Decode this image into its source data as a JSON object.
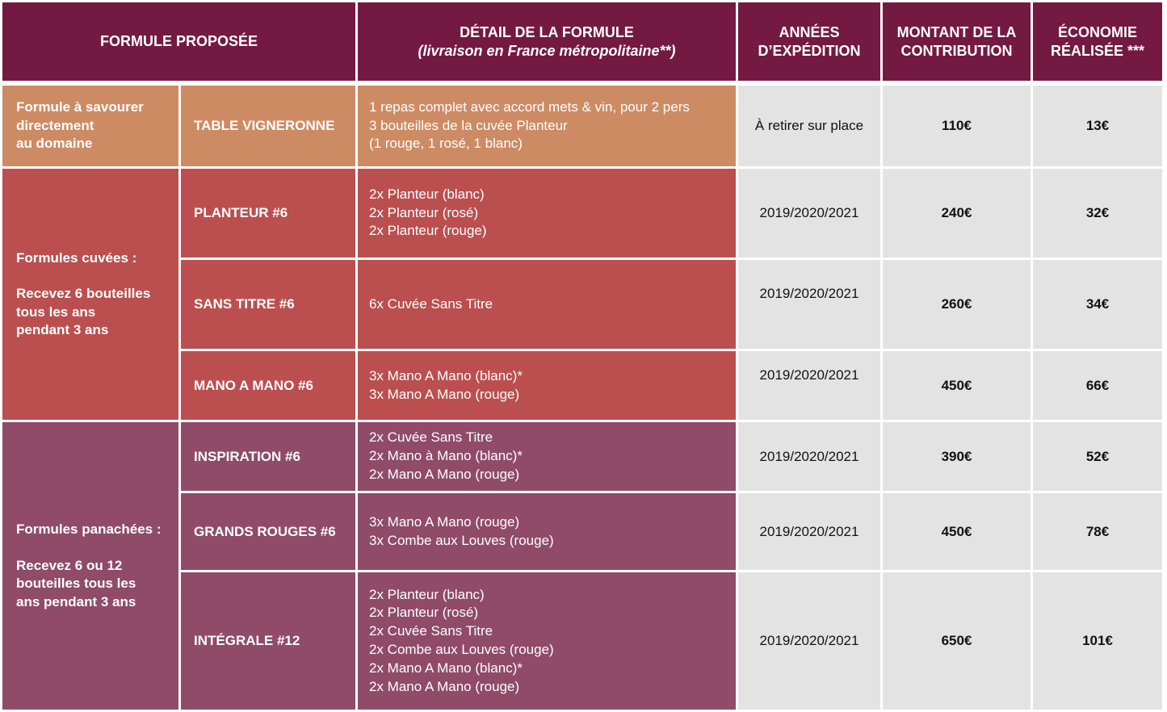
{
  "header": {
    "col1": "FORMULE PROPOSÉE",
    "col2_line1": "DÉTAIL DE LA FORMULE",
    "col2_line2": "(livraison en France métropolitaine**)",
    "col3_line1": "ANNÉES",
    "col3_line2": "D’EXPÉDITION",
    "col4_line1": "MONTANT DE LA",
    "col4_line2": "CONTRIBUTION",
    "col5_line1": "ÉCONOMIE",
    "col5_line2": "RÉALISÉE ***"
  },
  "groups": [
    {
      "lines": [
        "Formule à savourer",
        "directement",
        "au domaine"
      ],
      "color": "#cd8b64"
    },
    {
      "lines": [
        "Formules cuvées :",
        "",
        "Recevez 6 bouteilles",
        "tous les ans",
        "pendant 3 ans"
      ],
      "color": "#bb4f4f"
    },
    {
      "lines": [
        "Formules panachées :",
        "",
        "Recevez 6 ou 12",
        "bouteilles tous les",
        "ans pendant 3 ans"
      ],
      "color": "#8f4b68"
    }
  ],
  "rows": [
    {
      "name": "TABLE VIGNERONNE",
      "details": [
        "1 repas complet avec accord mets & vin, pour 2 pers",
        "3 bouteilles de la cuvée Planteur",
        "(1 rouge, 1 rosé, 1 blanc)"
      ],
      "years": "À retirer sur place",
      "amount": "110€",
      "saving": "13€"
    },
    {
      "name": "PLANTEUR #6",
      "details": [
        "2x Planteur (blanc)",
        "2x Planteur (rosé)",
        "2x Planteur (rouge)"
      ],
      "years": "2019/2020/2021",
      "amount": "240€",
      "saving": "32€"
    },
    {
      "name": "SANS TITRE #6",
      "details": [
        "6x Cuvée Sans Titre"
      ],
      "years": "2019/2020/2021",
      "amount": "260€",
      "saving": "34€"
    },
    {
      "name": "MANO A MANO #6",
      "details": [
        "3x Mano A Mano (blanc)*",
        "3x Mano A Mano (rouge)"
      ],
      "years": "2019/2020/2021",
      "amount": "450€",
      "saving": "66€"
    },
    {
      "name": "INSPIRATION #6",
      "details": [
        "2x Cuvée Sans Titre",
        "2x Mano à Mano (blanc)*",
        "2x Mano A Mano (rouge)"
      ],
      "years": "2019/2020/2021",
      "amount": "390€",
      "saving": "52€"
    },
    {
      "name": "GRANDS ROUGES #6",
      "details": [
        "3x Mano A Mano (rouge)",
        "3x Combe aux Louves (rouge)"
      ],
      "years": "2019/2020/2021",
      "amount": "450€",
      "saving": "78€"
    },
    {
      "name": "INTÉGRALE #12",
      "details": [
        "2x Planteur (blanc)",
        "2x Planteur (rosé)",
        "2x Cuvée Sans Titre",
        "2x Combe aux Louves (rouge)",
        "2x Mano A Mano (blanc)*",
        "2x Mano A Mano (rouge)"
      ],
      "years": "2019/2020/2021",
      "amount": "650€",
      "saving": "101€"
    }
  ],
  "colors": {
    "header": "#741941",
    "orange": "#cd8b64",
    "red": "#bb4f4f",
    "plum": "#8f4b68",
    "gray": "#e3e3e3"
  }
}
